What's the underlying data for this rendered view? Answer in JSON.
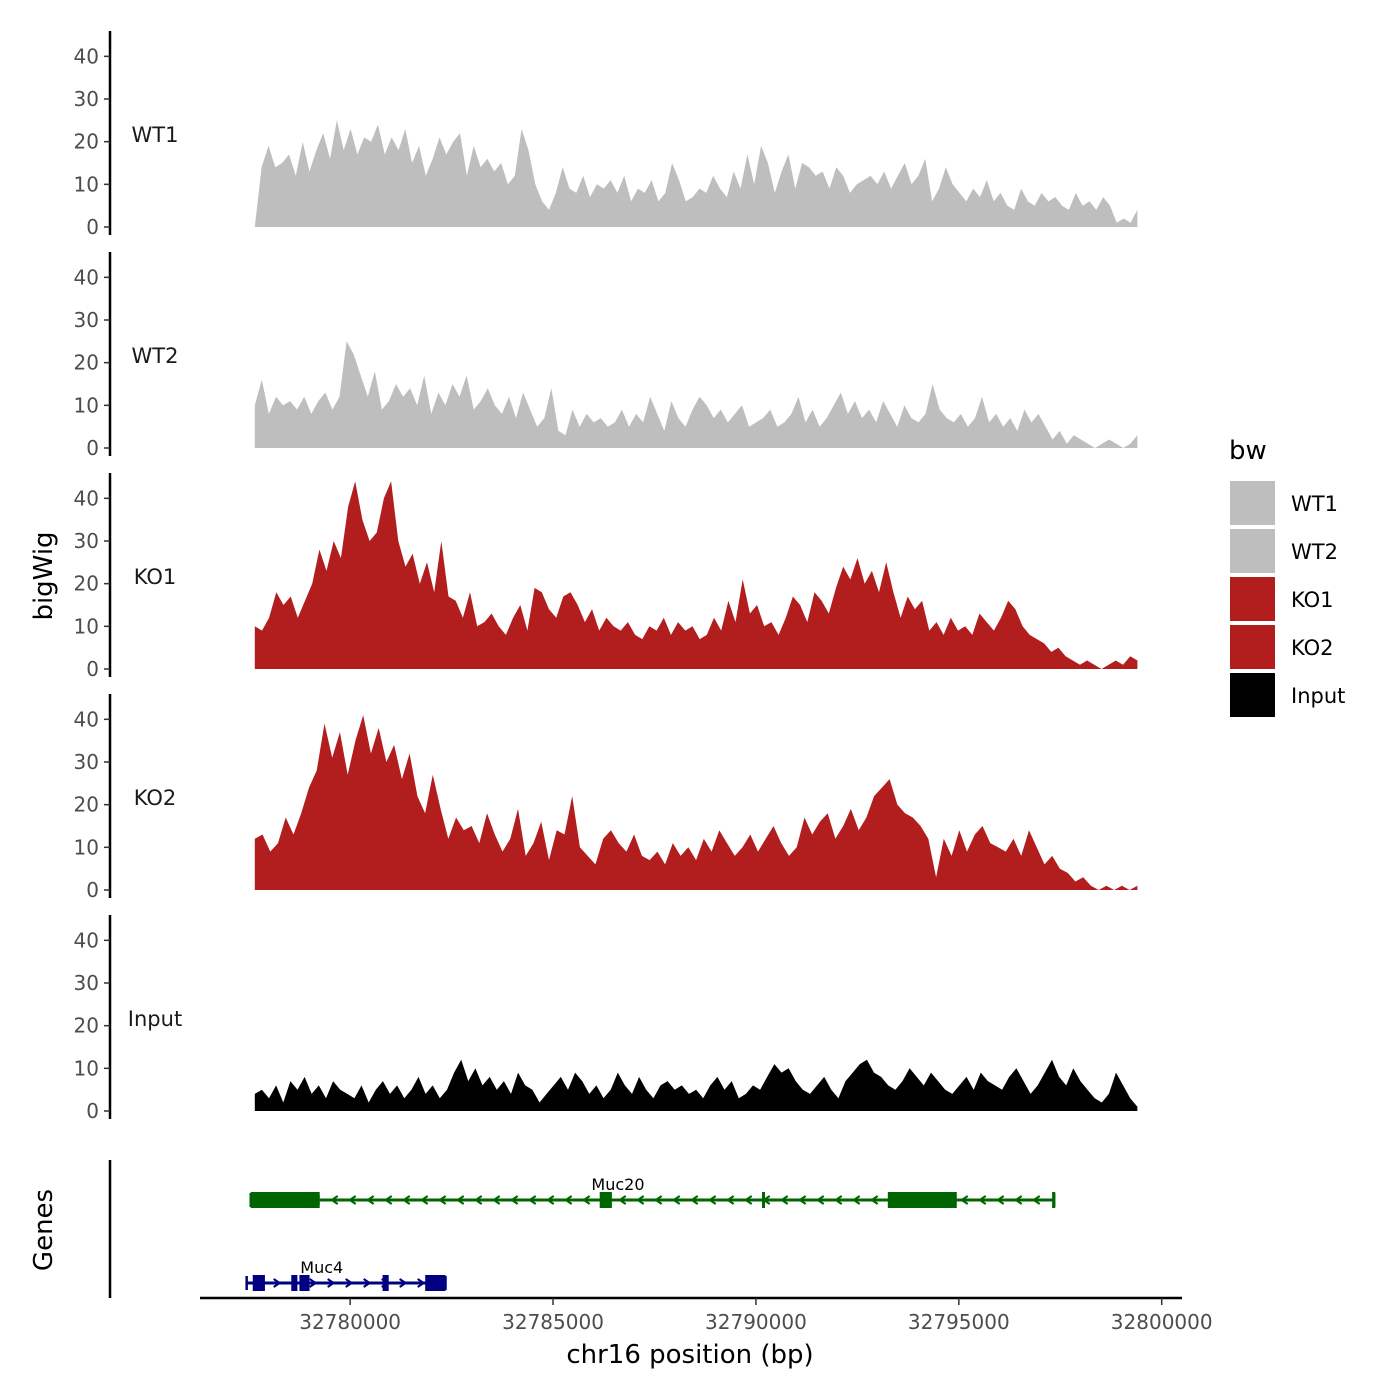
{
  "chart_data": {
    "type": "area",
    "x_axis_title": "chr16 position (bp)",
    "y_axis_title": "bigWig",
    "genes_axis_title": "Genes",
    "legend_title": "bw",
    "x_range": [
      32776300,
      32800500
    ],
    "x_ticks": [
      32780000,
      32785000,
      32790000,
      32795000,
      32800000
    ],
    "x_tick_labels": [
      "32780000",
      "32785000",
      "32790000",
      "32795000",
      "32800000"
    ],
    "y_range": [
      0,
      45
    ],
    "y_ticks": [
      0,
      10,
      20,
      30,
      40
    ],
    "y_tick_labels": [
      "0",
      "10",
      "20",
      "30",
      "40"
    ],
    "signal_x_start": 32777650,
    "signal_x_end": 32799400,
    "series": [
      {
        "name": "WT1",
        "color": "#bebebe",
        "values": [
          0,
          14,
          19,
          14,
          15,
          17,
          12,
          20,
          13,
          18,
          22,
          16,
          25,
          18,
          23,
          17,
          21,
          20,
          24,
          17,
          21,
          18,
          23,
          15,
          19,
          12,
          16,
          21,
          17,
          20,
          22,
          12,
          19,
          14,
          16,
          13,
          15,
          10,
          12,
          23,
          18,
          10,
          6,
          4,
          8,
          14,
          9,
          8,
          12,
          7,
          10,
          9,
          11,
          8,
          12,
          6,
          9,
          8,
          11,
          6,
          8,
          15,
          11,
          6,
          7,
          9,
          8,
          12,
          9,
          7,
          13,
          9,
          17,
          10,
          19,
          15,
          8,
          13,
          17,
          9,
          15,
          14,
          12,
          13,
          9,
          14,
          12,
          8,
          10,
          11,
          12,
          10,
          13,
          9,
          12,
          15,
          10,
          12,
          16,
          6,
          9,
          14,
          10,
          8,
          6,
          9,
          7,
          11,
          6,
          8,
          5,
          4,
          9,
          6,
          5,
          8,
          6,
          7,
          5,
          4,
          8,
          5,
          6,
          4,
          7,
          5,
          1,
          2,
          1,
          4
        ]
      },
      {
        "name": "WT2",
        "color": "#bebebe",
        "values": [
          10,
          16,
          8,
          12,
          10,
          11,
          9,
          12,
          8,
          11,
          13,
          9,
          12,
          25,
          22,
          17,
          12,
          18,
          9,
          11,
          15,
          12,
          14,
          10,
          17,
          8,
          13,
          10,
          15,
          12,
          17,
          9,
          11,
          14,
          10,
          8,
          12,
          7,
          13,
          9,
          5,
          7,
          14,
          4,
          3,
          9,
          5,
          8,
          6,
          7,
          5,
          6,
          9,
          5,
          8,
          6,
          12,
          8,
          4,
          11,
          7,
          5,
          9,
          12,
          10,
          7,
          9,
          6,
          8,
          10,
          5,
          6,
          7,
          9,
          5,
          6,
          8,
          12,
          6,
          9,
          5,
          7,
          10,
          13,
          8,
          11,
          7,
          9,
          6,
          11,
          8,
          5,
          10,
          7,
          6,
          8,
          15,
          9,
          7,
          6,
          8,
          5,
          7,
          12,
          6,
          8,
          5,
          7,
          4,
          9,
          6,
          8,
          5,
          2,
          4,
          1,
          3,
          2,
          1,
          0,
          1,
          2,
          1,
          0,
          1,
          3
        ]
      },
      {
        "name": "KO1",
        "color": "#b21e1e",
        "values": [
          10,
          9,
          12,
          18,
          15,
          17,
          12,
          16,
          20,
          28,
          23,
          30,
          26,
          38,
          44,
          35,
          30,
          32,
          40,
          44,
          30,
          24,
          27,
          20,
          25,
          18,
          30,
          17,
          16,
          12,
          18,
          10,
          11,
          13,
          10,
          8,
          12,
          15,
          9,
          19,
          18,
          14,
          12,
          17,
          18,
          15,
          11,
          14,
          9,
          12,
          10,
          9,
          11,
          8,
          7,
          10,
          9,
          12,
          8,
          11,
          9,
          10,
          7,
          8,
          12,
          9,
          16,
          11,
          21,
          13,
          15,
          10,
          11,
          8,
          12,
          17,
          15,
          11,
          18,
          16,
          13,
          19,
          24,
          21,
          26,
          20,
          23,
          18,
          25,
          18,
          12,
          17,
          14,
          16,
          9,
          11,
          8,
          12,
          9,
          10,
          8,
          13,
          11,
          9,
          12,
          16,
          14,
          10,
          8,
          7,
          6,
          4,
          5,
          3,
          2,
          1,
          2,
          1,
          0,
          1,
          2,
          1,
          3,
          2
        ]
      },
      {
        "name": "KO2",
        "color": "#b21e1e",
        "values": [
          12,
          13,
          9,
          11,
          17,
          13,
          18,
          24,
          28,
          39,
          31,
          37,
          27,
          35,
          41,
          32,
          38,
          30,
          34,
          26,
          32,
          22,
          18,
          27,
          19,
          12,
          17,
          14,
          15,
          11,
          18,
          13,
          9,
          12,
          19,
          8,
          11,
          16,
          7,
          14,
          13,
          22,
          10,
          8,
          6,
          12,
          14,
          11,
          9,
          13,
          8,
          7,
          9,
          6,
          11,
          8,
          10,
          7,
          12,
          9,
          14,
          11,
          8,
          10,
          13,
          9,
          12,
          15,
          11,
          8,
          10,
          17,
          13,
          16,
          18,
          12,
          15,
          19,
          14,
          17,
          22,
          24,
          26,
          20,
          18,
          17,
          15,
          12,
          3,
          12,
          8,
          14,
          9,
          13,
          15,
          11,
          10,
          9,
          12,
          8,
          14,
          10,
          6,
          8,
          5,
          4,
          2,
          3,
          1,
          0,
          1,
          0,
          1,
          0,
          1
        ]
      },
      {
        "name": "Input",
        "color": "#000000",
        "values": [
          4,
          5,
          3,
          6,
          2,
          7,
          5,
          8,
          4,
          6,
          3,
          7,
          5,
          4,
          3,
          6,
          2,
          5,
          7,
          4,
          6,
          3,
          5,
          8,
          4,
          6,
          3,
          5,
          9,
          12,
          7,
          10,
          6,
          8,
          5,
          7,
          4,
          9,
          6,
          5,
          2,
          4,
          6,
          8,
          5,
          9,
          7,
          4,
          6,
          3,
          5,
          9,
          6,
          4,
          8,
          5,
          3,
          6,
          7,
          5,
          6,
          4,
          5,
          3,
          6,
          8,
          5,
          7,
          3,
          4,
          6,
          5,
          8,
          11,
          9,
          10,
          7,
          5,
          4,
          6,
          8,
          5,
          3,
          7,
          9,
          11,
          12,
          9,
          8,
          6,
          5,
          7,
          10,
          8,
          6,
          9,
          7,
          5,
          4,
          6,
          8,
          5,
          9,
          7,
          6,
          5,
          8,
          10,
          7,
          4,
          6,
          9,
          12,
          8,
          6,
          10,
          7,
          5,
          3,
          2,
          4,
          9,
          6,
          3,
          1
        ]
      }
    ],
    "genes": [
      {
        "name": "Muc20",
        "color": "#006400",
        "strand": "-",
        "start": 32777550,
        "end": 32797350,
        "label_x": 32786600,
        "exons": [
          [
            32777550,
            32779250
          ],
          [
            32786150,
            32786450
          ],
          [
            32790150,
            32790200
          ],
          [
            32793250,
            32794950
          ],
          [
            32797300,
            32797350
          ]
        ]
      },
      {
        "name": "Muc4",
        "color": "#000080",
        "strand": "+",
        "start": 32777450,
        "end": 32782350,
        "label_x": 32779300,
        "exons": [
          [
            32777600,
            32777900
          ],
          [
            32778550,
            32778700
          ],
          [
            32778750,
            32779000
          ],
          [
            32780800,
            32780950
          ],
          [
            32781850,
            32782350
          ]
        ]
      }
    ]
  }
}
